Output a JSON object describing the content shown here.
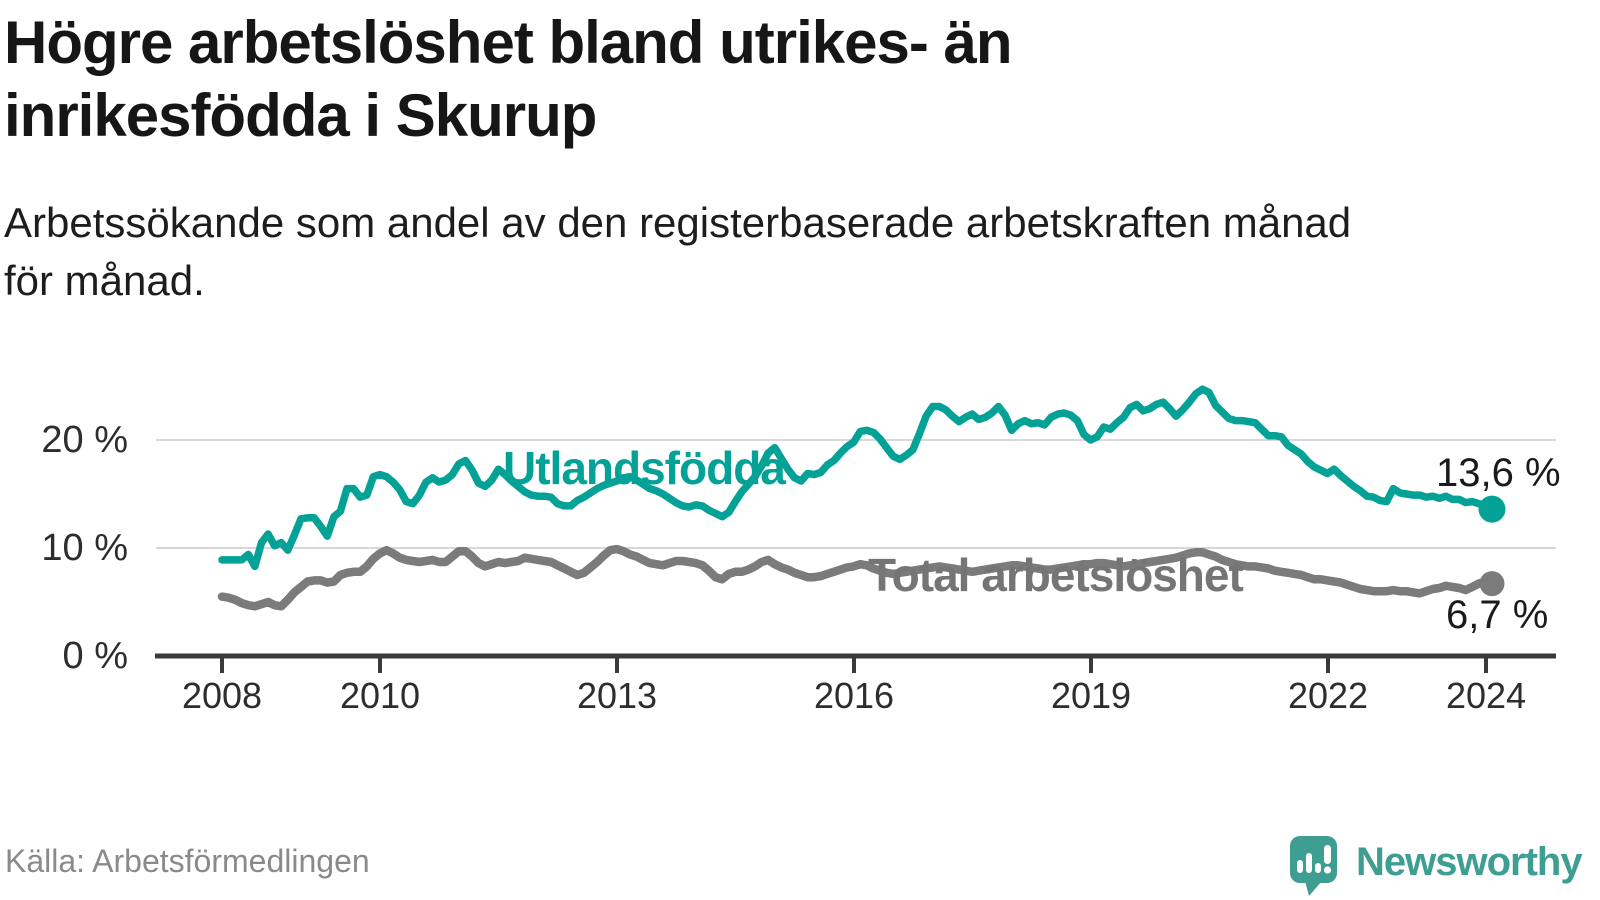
{
  "header": {
    "title_line1": "Högre arbetslöshet bland utrikes- än",
    "title_line2": "inrikesfödda i Skurup",
    "subtitle_line1": "Arbetssökande som andel av den registerbaserade arbetskraften månad",
    "subtitle_line2": "för månad."
  },
  "footer": {
    "source": "Källa: Arbetsförmedlingen",
    "brand": "Newsworthy"
  },
  "colors": {
    "series_utlandsfodda": "#04a296",
    "series_total": "#7b7b7b",
    "axis": "#3a3a3a",
    "grid": "#d8d8d8",
    "brand_teal": "#3f9e92",
    "value_label": "#1a1a1a"
  },
  "chart_data": {
    "type": "line",
    "title": "Högre arbetslöshet bland utrikes- än inrikesfödda i Skurup",
    "subtitle": "Arbetssökande som andel av den registerbaserade arbetskraften månad för månad.",
    "unit": "%",
    "frequency": "monthly",
    "start": "2008-01",
    "end": "2024-02",
    "grid": "horizontal",
    "legend_position": "inline-labels",
    "ylim": [
      0,
      26
    ],
    "x_ticks": [
      "2008",
      "2010",
      "2013",
      "2016",
      "2019",
      "2022",
      "2024"
    ],
    "y_ticks": [
      {
        "value": 0,
        "label": "0 %"
      },
      {
        "value": 10,
        "label": "10 %"
      },
      {
        "value": 20,
        "label": "20 %"
      }
    ],
    "series": [
      {
        "name": "Utlandsfödda",
        "color": "#04a296",
        "end_value": 13.6,
        "end_label": "13,6 %",
        "values": [
          8.9,
          8.9,
          8.9,
          8.9,
          9.4,
          8.3,
          10.5,
          11.3,
          10.2,
          10.5,
          9.8,
          11.2,
          12.7,
          12.8,
          12.8,
          12.0,
          11.1,
          12.9,
          13.4,
          15.5,
          15.5,
          14.7,
          14.9,
          16.6,
          16.8,
          16.6,
          16.1,
          15.4,
          14.3,
          14.1,
          14.9,
          16.1,
          16.5,
          16.1,
          16.3,
          16.8,
          17.8,
          18.1,
          17.2,
          16.0,
          15.7,
          16.3,
          17.3,
          16.8,
          16.2,
          15.7,
          15.2,
          14.9,
          14.8,
          14.8,
          14.7,
          14.1,
          13.9,
          13.9,
          14.4,
          14.7,
          15.1,
          15.5,
          15.8,
          16.0,
          16.2,
          16.5,
          16.6,
          16.3,
          15.9,
          15.5,
          15.3,
          15.0,
          14.6,
          14.2,
          13.9,
          13.8,
          14.0,
          13.9,
          13.5,
          13.2,
          12.9,
          13.3,
          14.3,
          15.2,
          15.9,
          16.6,
          17.6,
          18.8,
          19.3,
          18.3,
          17.3,
          16.5,
          16.2,
          16.9,
          16.8,
          17.0,
          17.7,
          18.1,
          18.8,
          19.4,
          19.8,
          20.8,
          20.9,
          20.7,
          20.1,
          19.3,
          18.5,
          18.2,
          18.6,
          19.1,
          20.6,
          22.2,
          23.1,
          23.1,
          22.8,
          22.2,
          21.7,
          22.1,
          22.4,
          21.9,
          22.1,
          22.5,
          23.1,
          22.3,
          20.9,
          21.5,
          21.8,
          21.5,
          21.6,
          21.4,
          22.1,
          22.4,
          22.5,
          22.3,
          21.8,
          20.5,
          20.0,
          20.3,
          21.2,
          21.0,
          21.6,
          22.1,
          23.0,
          23.3,
          22.7,
          22.9,
          23.3,
          23.5,
          22.9,
          22.2,
          22.8,
          23.5,
          24.3,
          24.7,
          24.4,
          23.2,
          22.6,
          22.0,
          21.8,
          21.8,
          21.7,
          21.6,
          21.0,
          20.4,
          20.4,
          20.3,
          19.5,
          19.1,
          18.7,
          18.0,
          17.5,
          17.2,
          16.9,
          17.3,
          16.7,
          16.2,
          15.7,
          15.3,
          14.8,
          14.7,
          14.4,
          14.3,
          15.5,
          15.1,
          15.0,
          14.9,
          14.9,
          14.7,
          14.8,
          14.6,
          14.8,
          14.5,
          14.5,
          14.2,
          14.3,
          14.1,
          14.0,
          13.6
        ]
      },
      {
        "name": "Total arbetslöshet",
        "color": "#7b7b7b",
        "end_value": 6.7,
        "end_label": "6,7 %",
        "values": [
          5.5,
          5.4,
          5.2,
          4.9,
          4.7,
          4.6,
          4.8,
          5.0,
          4.7,
          4.6,
          5.2,
          5.9,
          6.4,
          6.9,
          7.0,
          7.0,
          6.8,
          6.9,
          7.5,
          7.7,
          7.8,
          7.8,
          8.3,
          9.0,
          9.5,
          9.8,
          9.5,
          9.1,
          8.9,
          8.8,
          8.7,
          8.8,
          8.9,
          8.7,
          8.7,
          9.2,
          9.7,
          9.7,
          9.2,
          8.6,
          8.3,
          8.5,
          8.7,
          8.6,
          8.7,
          8.8,
          9.1,
          9.0,
          8.9,
          8.8,
          8.7,
          8.4,
          8.1,
          7.8,
          7.5,
          7.7,
          8.2,
          8.7,
          9.3,
          9.8,
          9.9,
          9.7,
          9.4,
          9.2,
          8.9,
          8.6,
          8.5,
          8.4,
          8.6,
          8.8,
          8.8,
          8.7,
          8.6,
          8.4,
          7.9,
          7.3,
          7.1,
          7.6,
          7.8,
          7.8,
          8.0,
          8.3,
          8.7,
          8.9,
          8.5,
          8.2,
          8.0,
          7.7,
          7.5,
          7.3,
          7.3,
          7.4,
          7.6,
          7.8,
          8.0,
          8.2,
          8.3,
          8.5,
          8.4,
          8.1,
          7.9,
          7.7,
          7.6,
          7.7,
          7.8,
          7.9,
          8.0,
          8.1,
          8.2,
          8.3,
          8.2,
          8.1,
          8.0,
          7.9,
          7.8,
          7.9,
          8.0,
          8.1,
          8.2,
          8.3,
          8.4,
          8.4,
          8.3,
          8.2,
          8.1,
          8.0,
          8.0,
          8.1,
          8.2,
          8.3,
          8.4,
          8.5,
          8.5,
          8.6,
          8.6,
          8.5,
          8.4,
          8.3,
          8.4,
          8.5,
          8.6,
          8.7,
          8.8,
          8.9,
          9.0,
          9.1,
          9.3,
          9.5,
          9.6,
          9.6,
          9.4,
          9.2,
          8.9,
          8.7,
          8.5,
          8.4,
          8.3,
          8.3,
          8.2,
          8.1,
          7.9,
          7.8,
          7.7,
          7.6,
          7.5,
          7.3,
          7.1,
          7.1,
          7.0,
          6.9,
          6.8,
          6.6,
          6.4,
          6.2,
          6.1,
          6.0,
          6.0,
          6.0,
          6.1,
          6.0,
          6.0,
          5.9,
          5.8,
          6.0,
          6.2,
          6.3,
          6.5,
          6.4,
          6.3,
          6.1,
          6.4,
          6.7,
          6.9,
          6.7
        ]
      }
    ]
  }
}
